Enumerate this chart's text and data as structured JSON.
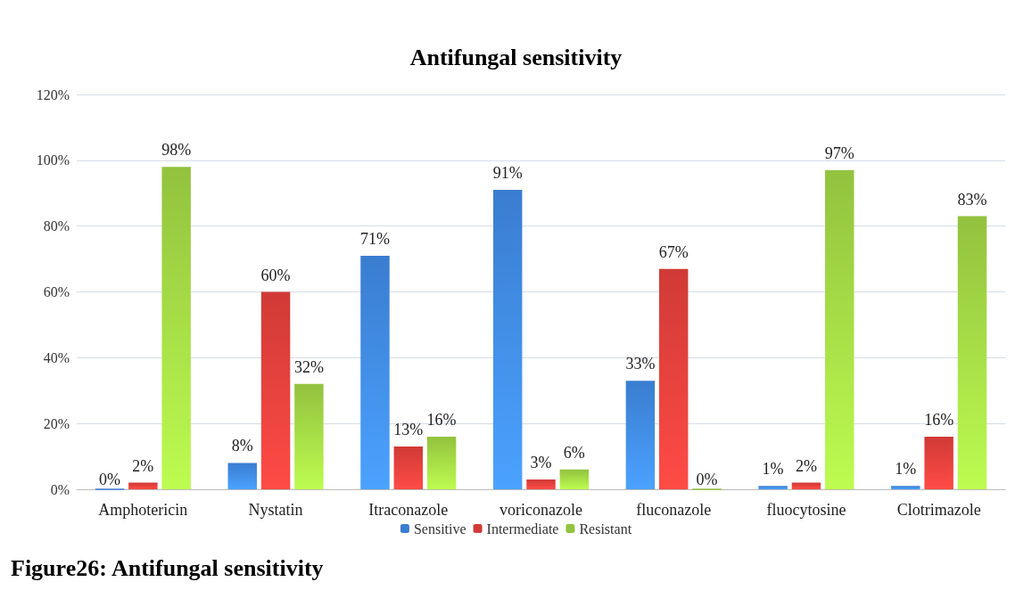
{
  "chart_data": {
    "type": "bar",
    "title": "Antifungal sensitivity",
    "categories": [
      "Amphotericin",
      "Nystatin",
      "Itraconazole",
      "voriconazole",
      "fluconazole",
      "fluocytosine",
      "Clotrimazole"
    ],
    "series": [
      {
        "name": "Sensitive",
        "color": "#3a7dd0",
        "values": [
          0,
          8,
          71,
          91,
          33,
          1,
          1
        ],
        "value_labels": [
          "0%",
          "8%",
          "71%",
          "91%",
          "33%",
          "1%",
          "1%"
        ]
      },
      {
        "name": "Intermediate",
        "color": "#d03a36",
        "values": [
          2,
          60,
          13,
          3,
          67,
          2,
          16
        ],
        "value_labels": [
          "2%",
          "60%",
          "13%",
          "3%",
          "67%",
          "2%",
          "16%"
        ]
      },
      {
        "name": "Resistant",
        "color": "#92c23e",
        "values": [
          98,
          32,
          16,
          6,
          0,
          97,
          83
        ],
        "value_labels": [
          "98%",
          "32%",
          "16%",
          "6%",
          "0%",
          "97%",
          "83%"
        ]
      }
    ],
    "ylim": [
      0,
      120
    ],
    "yticks": [
      {
        "value": 0,
        "label": "0%"
      },
      {
        "value": 20,
        "label": "20%"
      },
      {
        "value": 40,
        "label": "40%"
      },
      {
        "value": 60,
        "label": "60%"
      },
      {
        "value": 80,
        "label": "80%"
      },
      {
        "value": 100,
        "label": "100%"
      },
      {
        "value": 120,
        "label": "120%"
      }
    ],
    "grid": "y",
    "legend": "bottom",
    "annotations": [
      "Figure26: Antifungal sensitivity"
    ]
  }
}
